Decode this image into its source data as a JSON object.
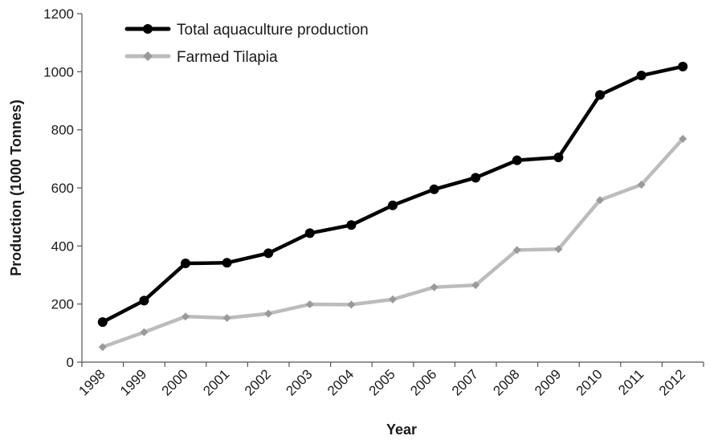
{
  "chart_data": {
    "type": "line",
    "x": [
      "1998",
      "1999",
      "2000",
      "2001",
      "2002",
      "2003",
      "2004",
      "2005",
      "2006",
      "2007",
      "2008",
      "2009",
      "2010",
      "2011",
      "2012"
    ],
    "series": [
      {
        "name": "Total aquaculture production",
        "color": "#000000",
        "marker": "circle",
        "values": [
          138,
          212,
          340,
          342,
          375,
          444,
          472,
          540,
          595,
          635,
          695,
          705,
          920,
          987,
          1018
        ]
      },
      {
        "name": "Farmed Tilapia",
        "color": "#bcbcbc",
        "marker": "diamond",
        "values": [
          52,
          103,
          157,
          152,
          167,
          199,
          198,
          216,
          258,
          265,
          386,
          389,
          558,
          611,
          769
        ]
      }
    ],
    "xlabel": "Year",
    "ylabel": "Production (1000 Tonnes)",
    "ylim": [
      0,
      1200
    ],
    "yticks": [
      "0",
      "200",
      "400",
      "600",
      "800",
      "1000",
      "1200"
    ],
    "grid": false,
    "legend_position": "top-left"
  }
}
